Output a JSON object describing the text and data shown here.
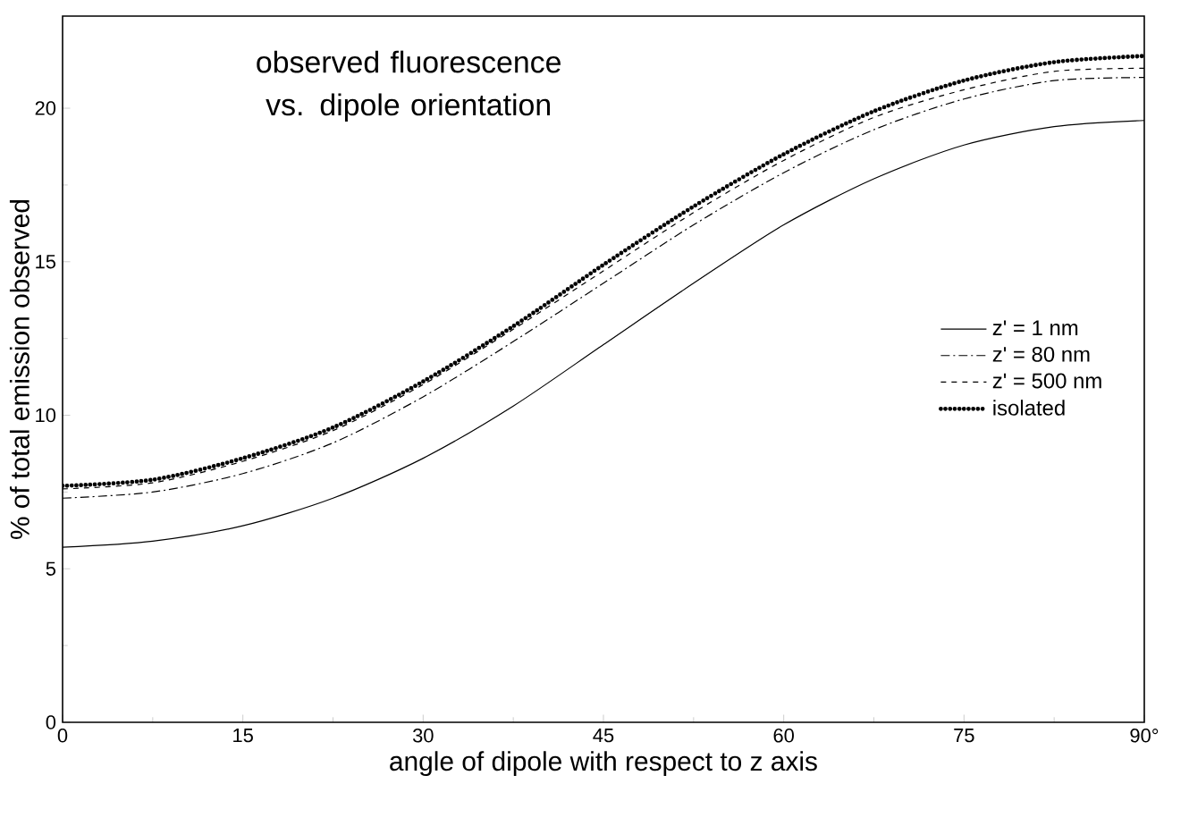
{
  "chart_data": {
    "type": "line",
    "title": "observed fluorescence vs. dipole orientation",
    "xlabel": "angle of dipole with respect to z axis",
    "ylabel": "% of total emission observed",
    "x": [
      0,
      7.5,
      15,
      22.5,
      30,
      37.5,
      45,
      52.5,
      60,
      67.5,
      75,
      82.5,
      90
    ],
    "series": [
      {
        "name": "z' = 1 nm",
        "color": "#000000",
        "line_style": "solid",
        "values": [
          5.7,
          5.9,
          6.4,
          7.3,
          8.6,
          10.3,
          12.3,
          14.3,
          16.2,
          17.7,
          18.8,
          19.4,
          19.6
        ]
      },
      {
        "name": "z' = 80 nm",
        "color": "#000000",
        "line_style": "dashdot",
        "values": [
          7.3,
          7.5,
          8.1,
          9.1,
          10.6,
          12.4,
          14.3,
          16.2,
          17.9,
          19.3,
          20.3,
          20.9,
          21.0
        ]
      },
      {
        "name": "z' = 500 nm",
        "color": "#000000",
        "line_style": "dashed",
        "values": [
          7.6,
          7.8,
          8.5,
          9.5,
          11.0,
          12.8,
          14.7,
          16.6,
          18.3,
          19.7,
          20.6,
          21.2,
          21.3
        ]
      },
      {
        "name": "isolated",
        "color": "#000000",
        "line_style": "dotted",
        "values": [
          7.7,
          7.9,
          8.6,
          9.6,
          11.1,
          12.9,
          14.9,
          16.8,
          18.5,
          19.9,
          20.9,
          21.5,
          21.7
        ]
      }
    ],
    "xlim": [
      0,
      90
    ],
    "ylim": [
      0,
      23
    ],
    "xticks": [
      0,
      15,
      30,
      45,
      60,
      75,
      {
        "value": 90,
        "label": "90°"
      }
    ],
    "yticks": [
      0,
      5,
      10,
      15,
      20
    ],
    "legend": "right",
    "grid": false,
    "marker": "none"
  }
}
